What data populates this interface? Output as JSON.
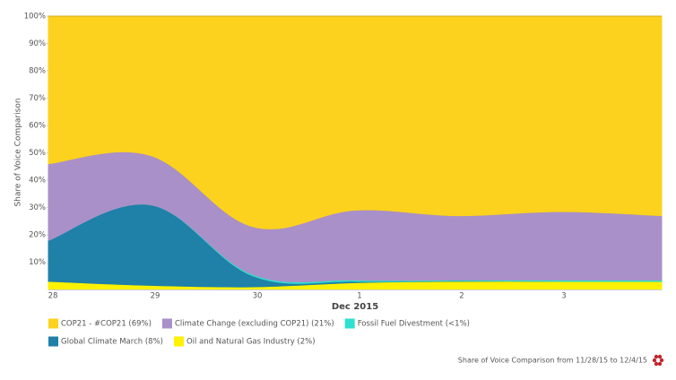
{
  "chart_data": {
    "type": "area",
    "stacked": true,
    "y_label": "Share of Voice Comparison",
    "x_label": "Dec 2015",
    "footer": "Share of Voice Comparison from 11/28/15 to 12/4/15",
    "categories": [
      "28",
      "29",
      "30",
      "1",
      "2",
      "3",
      null
    ],
    "ylim": [
      0,
      100
    ],
    "yticks": [
      {
        "value": 10,
        "label": "10%"
      },
      {
        "value": 20,
        "label": "20%"
      },
      {
        "value": 30,
        "label": "30%"
      },
      {
        "value": 40,
        "label": "40%"
      },
      {
        "value": 50,
        "label": "50%"
      },
      {
        "value": 60,
        "label": "60%"
      },
      {
        "value": 70,
        "label": "70%"
      },
      {
        "value": 80,
        "label": "80%"
      },
      {
        "value": 90,
        "label": "90%"
      },
      {
        "value": 100,
        "label": "100%"
      }
    ],
    "series": [
      {
        "name": "COP21 - #COP21 (69%)",
        "color": "#fcd21e",
        "values": [
          54,
          51,
          77,
          71,
          73,
          71.5,
          73
        ]
      },
      {
        "name": "Climate Change (excluding COP21) (21%)",
        "color": "#aa90c8",
        "values": [
          28,
          18,
          17.5,
          25.5,
          23.5,
          25,
          23.5
        ]
      },
      {
        "name": "Fossil Fuel Divestment (<1%)",
        "color": "#2fe0d2",
        "values": [
          0,
          0,
          0.5,
          0.5,
          0.3,
          0.5,
          0.5
        ]
      },
      {
        "name": "Global Climate March (8%)",
        "color": "#1f80a8",
        "values": [
          15,
          29.5,
          4,
          0.5,
          0.2,
          0,
          0
        ]
      },
      {
        "name": "Oil and Natural Gas Industry (2%)",
        "color": "#fff200",
        "values": [
          3,
          1.5,
          1,
          2.5,
          3,
          3,
          3
        ]
      }
    ]
  }
}
